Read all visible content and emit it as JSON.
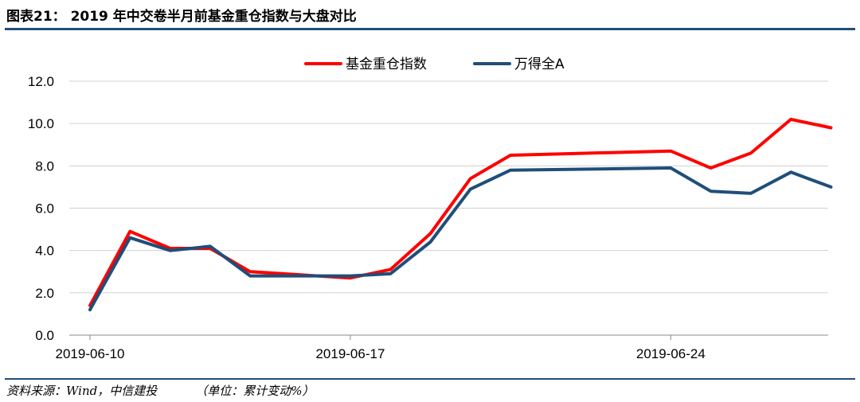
{
  "header": {
    "title": "图表21： 2019 年中交卷半月前基金重仓指数与大盘对比"
  },
  "footer": {
    "source": "资料来源：Wind，中信建投",
    "unit": "（单位：累计变动%）"
  },
  "chart_data": {
    "type": "line",
    "title": "",
    "xlabel": "",
    "ylabel": "",
    "ylim": [
      0,
      12
    ],
    "yticks": [
      "0.0",
      "2.0",
      "4.0",
      "6.0",
      "8.0",
      "10.0",
      "12.0"
    ],
    "grid": true,
    "legend_position": "top-center",
    "x": [
      "2019-06-10",
      "2019-06-11",
      "2019-06-12",
      "2019-06-13",
      "2019-06-14",
      "2019-06-17",
      "2019-06-18",
      "2019-06-19",
      "2019-06-20",
      "2019-06-21",
      "2019-06-24",
      "2019-06-25",
      "2019-06-26",
      "2019-06-27",
      "2019-06-28"
    ],
    "xtick_labels": [
      {
        "index": 0,
        "label": "2019-06-10"
      },
      {
        "index": 5,
        "label": "2019-06-17"
      },
      {
        "index": 10,
        "label": "2019-06-24"
      }
    ],
    "series": [
      {
        "name": "基金重仓指数",
        "color": "#ff0000",
        "x_positions": [
          0,
          1,
          2,
          3,
          4,
          6.5,
          7.5,
          8.5,
          9.5,
          10.5,
          14.5,
          15.5,
          16.5,
          17.5,
          18.5
        ],
        "values": [
          1.4,
          4.9,
          4.1,
          4.1,
          3.0,
          2.7,
          3.1,
          4.8,
          7.4,
          8.5,
          8.7,
          7.9,
          8.6,
          10.2,
          9.8
        ]
      },
      {
        "name": "万得全A",
        "color": "#1f4e79",
        "x_positions": [
          0,
          1,
          2,
          3,
          4,
          6.5,
          7.5,
          8.5,
          9.5,
          10.5,
          14.5,
          15.5,
          16.5,
          17.5,
          18.5
        ],
        "values": [
          1.2,
          4.6,
          4.0,
          4.2,
          2.8,
          2.8,
          2.9,
          4.4,
          6.9,
          7.8,
          7.9,
          6.8,
          6.7,
          7.7,
          7.0
        ]
      }
    ]
  }
}
